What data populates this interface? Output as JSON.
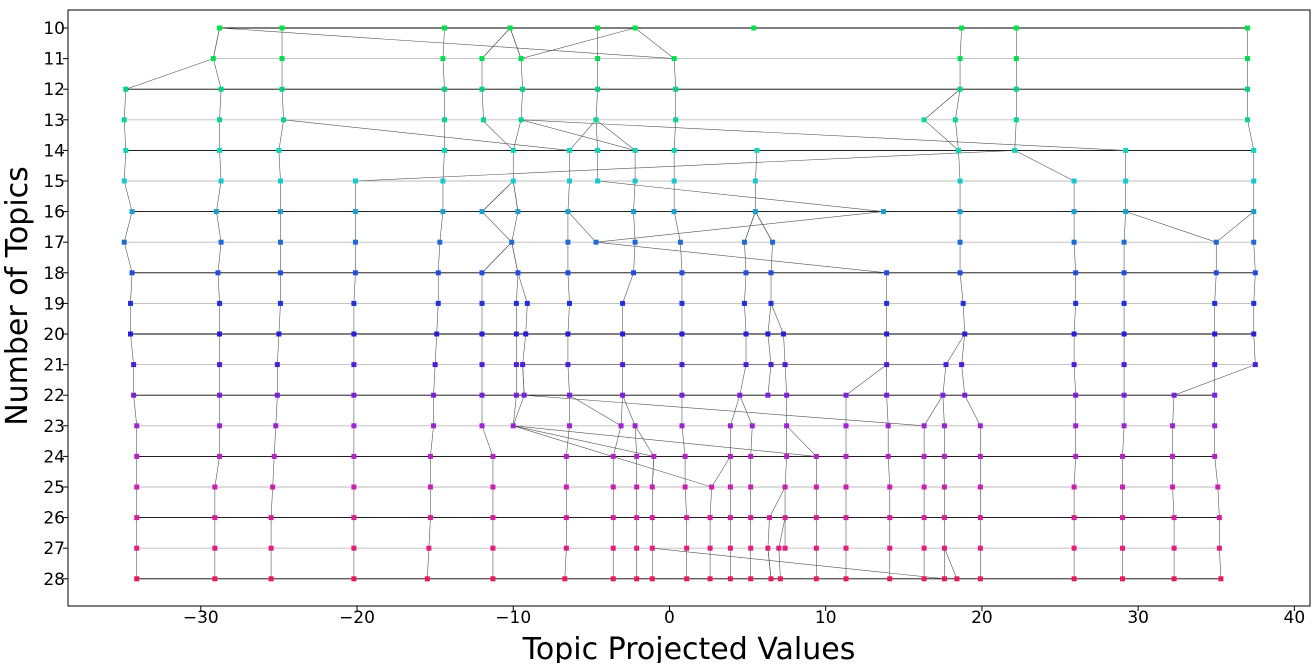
{
  "chart_data": {
    "type": "scatter",
    "xlabel": "Topic Projected Values",
    "ylabel": "Number of Topics",
    "xlim": [
      -38.5,
      41
    ],
    "ylim": [
      10,
      28
    ],
    "y_inverted": true,
    "x_ticks": [
      -30,
      -20,
      -10,
      0,
      10,
      20,
      30,
      40
    ],
    "x_tick_labels": [
      "−30",
      "−20",
      "−10",
      "0",
      "10",
      "20",
      "30",
      "40"
    ],
    "y_ticks": [
      10,
      11,
      12,
      13,
      14,
      15,
      16,
      17,
      18,
      19,
      20,
      21,
      22,
      23,
      24,
      25,
      26,
      27,
      28
    ],
    "y_tick_labels": [
      "10",
      "11",
      "12",
      "13",
      "14",
      "15",
      "16",
      "17",
      "18",
      "19",
      "20",
      "21",
      "22",
      "23",
      "24",
      "25",
      "26",
      "27",
      "28"
    ],
    "grid": false,
    "legend": "none",
    "row_colors": {
      "10": "#00e44a",
      "11": "#02dc4f",
      "12": "#07d27c",
      "13": "#0ad39a",
      "14": "#0fd6b8",
      "15": "#18c8cf",
      "16": "#1d9ed2",
      "17": "#1f6bd6",
      "18": "#214ee0",
      "19": "#2230dc",
      "20": "#2a1fd8",
      "21": "#4e1fd8",
      "22": "#7a22d8",
      "23": "#9c25d2",
      "24": "#b424c4",
      "25": "#c821b0",
      "26": "#d6209a",
      "27": "#e11d7e",
      "28": "#e8195e"
    },
    "connector_color": "#555555",
    "series": [
      {
        "topics": 10,
        "x": [
          -28.8,
          -24.8,
          -14.4,
          -10.2,
          -4.6,
          -2.2,
          5.4,
          18.7,
          22.2,
          37.0
        ]
      },
      {
        "topics": 11,
        "x": [
          -29.2,
          -24.8,
          -14.5,
          -12.0,
          -9.5,
          -4.6,
          0.3,
          18.6,
          22.2,
          37.0
        ]
      },
      {
        "topics": 12,
        "x": [
          -34.8,
          -28.7,
          -24.8,
          -14.4,
          -12.0,
          -9.4,
          -4.6,
          0.4,
          18.6,
          22.2,
          37.0
        ]
      },
      {
        "topics": 13,
        "x": [
          -34.9,
          -28.8,
          -24.7,
          -14.4,
          -11.9,
          -9.5,
          -4.7,
          0.4,
          16.3,
          18.3,
          22.2,
          37.0
        ]
      },
      {
        "topics": 14,
        "x": [
          -34.8,
          -28.8,
          -25.0,
          -14.4,
          -10.0,
          -6.4,
          -4.6,
          -2.2,
          0.3,
          5.6,
          18.5,
          22.1,
          29.2,
          37.4
        ]
      },
      {
        "topics": 15,
        "x": [
          -34.9,
          -28.7,
          -24.9,
          -20.1,
          -14.5,
          -10.0,
          -6.4,
          -4.6,
          -2.2,
          0.3,
          5.5,
          18.6,
          25.9,
          29.2,
          37.4
        ]
      },
      {
        "topics": 16,
        "x": [
          -34.4,
          -29.0,
          -24.9,
          -20.1,
          -14.5,
          -12.0,
          -9.7,
          -6.5,
          -2.3,
          0.3,
          5.5,
          13.7,
          18.6,
          25.9,
          29.2,
          37.4
        ]
      },
      {
        "topics": 17,
        "x": [
          -34.9,
          -28.7,
          -24.9,
          -20.1,
          -14.7,
          -10.1,
          -6.5,
          -4.7,
          -2.2,
          0.7,
          4.8,
          6.6,
          18.6,
          25.9,
          29.1,
          35.0,
          37.4
        ]
      },
      {
        "topics": 18,
        "x": [
          -34.4,
          -28.9,
          -24.9,
          -20.1,
          -14.8,
          -12.0,
          -9.7,
          -6.5,
          -2.3,
          0.8,
          4.9,
          6.5,
          13.9,
          18.6,
          26.0,
          29.1,
          35.0,
          37.5
        ]
      },
      {
        "topics": 19,
        "x": [
          -34.5,
          -28.8,
          -24.9,
          -20.2,
          -14.8,
          -12.0,
          -9.8,
          -9.1,
          -6.4,
          -3.0,
          0.8,
          4.8,
          6.5,
          13.9,
          18.8,
          26.0,
          29.1,
          34.9,
          37.4
        ]
      },
      {
        "topics": 20,
        "x": [
          -34.5,
          -28.8,
          -25.0,
          -20.2,
          -14.9,
          -12.0,
          -9.8,
          -9.2,
          -6.5,
          -3.0,
          0.8,
          4.9,
          6.3,
          7.3,
          13.9,
          18.9,
          25.9,
          29.1,
          34.9,
          37.4
        ]
      },
      {
        "topics": 21,
        "x": [
          -34.3,
          -28.8,
          -25.1,
          -20.2,
          -15.0,
          -12.0,
          -9.8,
          -9.4,
          -6.5,
          -3.0,
          0.8,
          4.9,
          6.5,
          7.4,
          13.9,
          17.7,
          18.7,
          25.9,
          29.1,
          34.9,
          37.5
        ]
      },
      {
        "topics": 22,
        "x": [
          -34.3,
          -28.8,
          -25.1,
          -20.2,
          -15.1,
          -12.0,
          -9.8,
          -9.3,
          -6.4,
          -3.0,
          0.8,
          4.5,
          6.3,
          7.5,
          11.3,
          13.9,
          17.5,
          18.9,
          26.0,
          29.1,
          32.3,
          34.9
        ]
      },
      {
        "topics": 23,
        "x": [
          -34.1,
          -28.8,
          -25.2,
          -20.2,
          -15.1,
          -12.0,
          -10.0,
          -6.4,
          -3.1,
          -2.2,
          0.8,
          3.9,
          5.3,
          7.5,
          11.3,
          14.0,
          16.3,
          17.6,
          19.9,
          26.0,
          29.1,
          32.2,
          34.9
        ]
      },
      {
        "topics": 24,
        "x": [
          -34.1,
          -28.8,
          -25.3,
          -20.2,
          -15.3,
          -11.3,
          -6.6,
          -3.6,
          -2.1,
          -1.0,
          1.0,
          3.9,
          5.2,
          7.5,
          9.4,
          11.3,
          14.0,
          16.3,
          17.6,
          19.9,
          26.0,
          29.0,
          32.2,
          34.9
        ]
      },
      {
        "topics": 25,
        "x": [
          -34.1,
          -29.1,
          -25.4,
          -20.2,
          -15.3,
          -11.3,
          -6.6,
          -3.6,
          -2.1,
          -1.1,
          1.0,
          2.7,
          3.9,
          5.2,
          7.4,
          9.4,
          11.3,
          14.1,
          16.3,
          17.6,
          19.9,
          25.9,
          29.0,
          32.2,
          35.1
        ]
      },
      {
        "topics": 26,
        "x": [
          -34.1,
          -29.1,
          -25.5,
          -20.2,
          -15.3,
          -11.3,
          -6.6,
          -3.6,
          -2.1,
          -1.1,
          1.1,
          2.6,
          3.9,
          5.2,
          6.4,
          7.4,
          9.4,
          11.3,
          14.1,
          16.3,
          17.6,
          19.9,
          25.9,
          29.0,
          32.3,
          35.2
        ]
      },
      {
        "topics": 27,
        "x": [
          -34.1,
          -29.1,
          -25.5,
          -20.2,
          -15.4,
          -11.3,
          -6.6,
          -3.6,
          -2.1,
          -1.1,
          1.1,
          2.6,
          3.9,
          5.2,
          6.3,
          7.0,
          7.4,
          9.4,
          11.3,
          14.1,
          16.3,
          17.6,
          19.9,
          25.9,
          29.0,
          32.3,
          35.2
        ]
      },
      {
        "topics": 28,
        "x": [
          -34.1,
          -29.1,
          -25.5,
          -20.2,
          -15.5,
          -11.3,
          -6.7,
          -3.6,
          -2.1,
          -1.1,
          1.1,
          2.6,
          3.9,
          5.2,
          6.5,
          7.1,
          9.4,
          11.3,
          14.1,
          16.3,
          17.6,
          18.4,
          19.9,
          25.9,
          29.0,
          32.3,
          35.3
        ]
      }
    ],
    "connections": [
      [
        [
          -28.8,
          10
        ],
        [
          -29.2,
          11
        ]
      ],
      [
        [
          -29.2,
          11
        ],
        [
          -34.8,
          12
        ]
      ],
      [
        [
          -28.8,
          10
        ],
        [
          0.3,
          11
        ]
      ],
      [
        [
          -2.2,
          10
        ],
        [
          -9.5,
          11
        ]
      ],
      [
        [
          -10.2,
          10
        ],
        [
          -12.0,
          11
        ]
      ],
      [
        [
          -10.2,
          10
        ],
        [
          -9.5,
          11
        ]
      ],
      [
        [
          -24.7,
          13
        ],
        [
          -6.4,
          14
        ]
      ],
      [
        [
          -9.5,
          13
        ],
        [
          -2.2,
          14
        ]
      ],
      [
        [
          -9.5,
          13
        ],
        [
          29.2,
          14
        ]
      ],
      [
        [
          16.3,
          13
        ],
        [
          18.6,
          12
        ]
      ],
      [
        [
          16.3,
          13
        ],
        [
          18.5,
          14
        ]
      ],
      [
        [
          -12.0,
          13
        ],
        [
          -10.0,
          14
        ]
      ],
      [
        [
          -20.1,
          15
        ],
        [
          22.1,
          14
        ]
      ],
      [
        [
          22.1,
          14
        ],
        [
          25.9,
          15
        ]
      ],
      [
        [
          -10.0,
          15
        ],
        [
          -12.0,
          16
        ]
      ],
      [
        [
          -10.0,
          15
        ],
        [
          -9.7,
          16
        ]
      ],
      [
        [
          -4.6,
          15
        ],
        [
          13.7,
          16
        ]
      ],
      [
        [
          -12.0,
          16
        ],
        [
          -10.1,
          17
        ]
      ],
      [
        [
          13.7,
          16
        ],
        [
          -4.7,
          17
        ]
      ],
      [
        [
          5.5,
          16
        ],
        [
          4.8,
          17
        ]
      ],
      [
        [
          5.5,
          16
        ],
        [
          6.6,
          17
        ]
      ],
      [
        [
          29.2,
          16
        ],
        [
          35.0,
          17
        ]
      ],
      [
        [
          -4.7,
          17
        ],
        [
          13.9,
          18
        ]
      ],
      [
        [
          -10.1,
          17
        ],
        [
          -12.0,
          18
        ]
      ],
      [
        [
          -10.1,
          17
        ],
        [
          -9.7,
          18
        ]
      ],
      [
        [
          37.5,
          21
        ],
        [
          32.3,
          22
        ]
      ],
      [
        [
          -9.4,
          21
        ],
        [
          -9.3,
          22
        ]
      ],
      [
        [
          -9.4,
          21
        ],
        [
          17.7,
          21
        ]
      ],
      [
        [
          -9.3,
          22
        ],
        [
          16.3,
          23
        ]
      ],
      [
        [
          -9.3,
          22
        ],
        [
          -10.0,
          23
        ]
      ],
      [
        [
          -6.4,
          22
        ],
        [
          -3.1,
          23
        ]
      ],
      [
        [
          -10.0,
          23
        ],
        [
          9.4,
          24
        ]
      ],
      [
        [
          -10.0,
          23
        ],
        [
          -1.0,
          24
        ]
      ],
      [
        [
          -10.0,
          23
        ],
        [
          2.7,
          25
        ]
      ],
      [
        [
          -1.0,
          24
        ],
        [
          -1.1,
          25
        ]
      ],
      [
        [
          -1.1,
          27
        ],
        [
          17.6,
          28
        ]
      ],
      [
        [
          6.3,
          27
        ],
        [
          6.5,
          28
        ]
      ]
    ]
  }
}
